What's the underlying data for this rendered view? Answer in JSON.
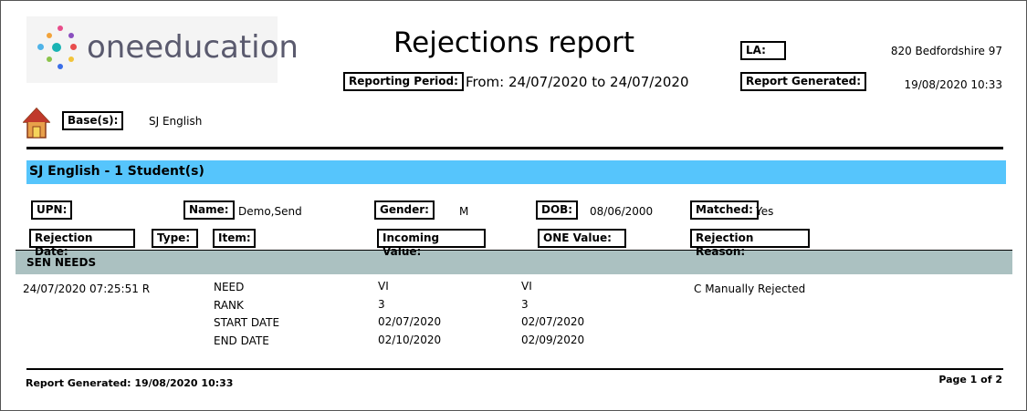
{
  "header": {
    "logo": "oneeducation",
    "title": "Rejections report",
    "la_label": "LA:",
    "la_value": "820 Bedfordshire 97",
    "period_label": "Reporting Period:",
    "period_value": "From: 24/07/2020 to 24/07/2020",
    "generated_label": "Report Generated:",
    "generated_value": "19/08/2020 10:33",
    "base_label": "Base(s):",
    "base_value": "SJ English"
  },
  "group": {
    "title": "SJ English -  1 Student(s)",
    "fields": [
      {
        "label": "UPN:",
        "value": ""
      },
      {
        "label": "Name:",
        "value": "Demo,Send"
      },
      {
        "label": "Gender:",
        "value": "M"
      },
      {
        "label": "DOB:",
        "value": "08/06/2000"
      },
      {
        "label": "Matched:",
        "value": "Yes"
      }
    ],
    "columns": [
      "Rejection Date:",
      "Type:",
      "Item:",
      "Incoming Value:",
      "ONE Value:",
      "Rejection Reason:"
    ],
    "section": "SEN NEEDS",
    "row": {
      "date": "24/07/2020  07:25:51 R",
      "reason": "C Manually Rejected",
      "items": [
        {
          "item": "NEED",
          "incoming": "VI",
          "one": "VI"
        },
        {
          "item": "RANK",
          "incoming": "3",
          "one": "3"
        },
        {
          "item": "START DATE",
          "incoming": "02/07/2020",
          "one": "02/07/2020"
        },
        {
          "item": "END DATE",
          "incoming": "02/10/2020",
          "one": "02/09/2020"
        }
      ]
    }
  },
  "footer": {
    "generated": "Report Generated: 19/08/2020 10:33",
    "page": "Page 1 of 2"
  }
}
